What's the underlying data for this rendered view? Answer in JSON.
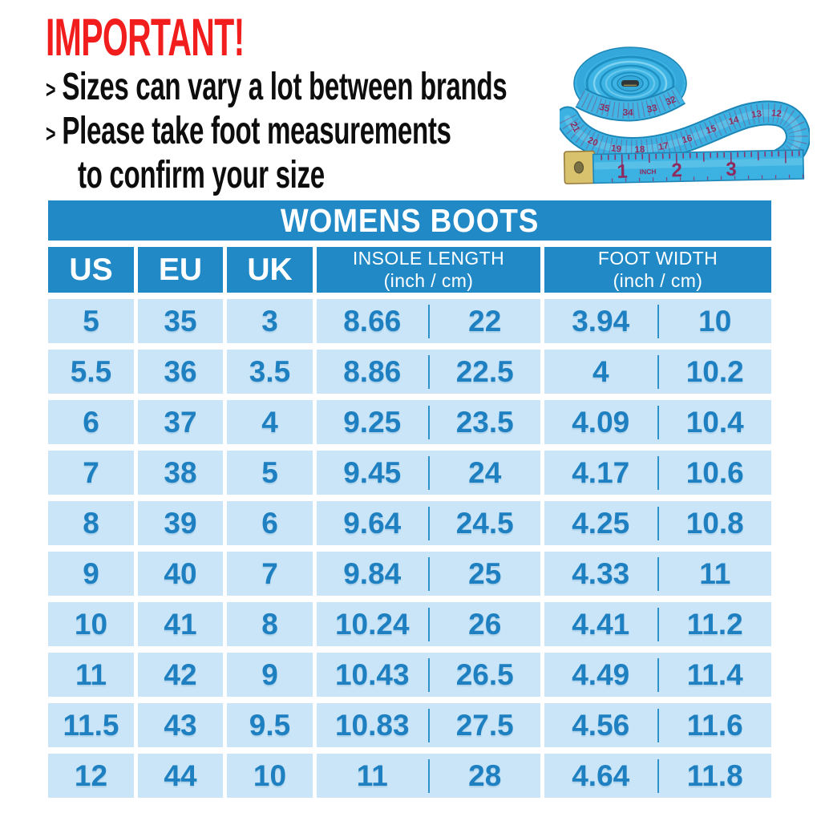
{
  "notice": {
    "title": "IMPORTANT!",
    "lines": [
      {
        "bullet": ">",
        "text": "Sizes can vary a lot between brands",
        "indent": false
      },
      {
        "bullet": ">",
        "text": "Please take foot measurements",
        "indent": false
      },
      {
        "bullet": "",
        "text": "to confirm your size",
        "indent": true
      }
    ]
  },
  "tape": {
    "inch_label": "INCH",
    "inch_numbers": [
      "1",
      "2",
      "3"
    ],
    "swoosh_numbers": [
      "21",
      "20",
      "19",
      "18",
      "17",
      "16",
      "15",
      "14",
      "13",
      "12"
    ],
    "coil_numbers": [
      "35",
      "34",
      "33",
      "32"
    ]
  },
  "table": {
    "title": "WOMENS BOOTS",
    "columns": [
      {
        "key": "us",
        "label": "US"
      },
      {
        "key": "eu",
        "label": "EU"
      },
      {
        "key": "uk",
        "label": "UK"
      },
      {
        "key": "insole",
        "label": "INSOLE LENGTH",
        "sub": "(inch / cm)"
      },
      {
        "key": "width",
        "label": "FOOT WIDTH",
        "sub": "(inch / cm)"
      }
    ],
    "rows": [
      {
        "us": "5",
        "eu": "35",
        "uk": "3",
        "insole_in": "8.66",
        "insole_cm": "22",
        "width_in": "3.94",
        "width_cm": "10"
      },
      {
        "us": "5.5",
        "eu": "36",
        "uk": "3.5",
        "insole_in": "8.86",
        "insole_cm": "22.5",
        "width_in": "4",
        "width_cm": "10.2"
      },
      {
        "us": "6",
        "eu": "37",
        "uk": "4",
        "insole_in": "9.25",
        "insole_cm": "23.5",
        "width_in": "4.09",
        "width_cm": "10.4"
      },
      {
        "us": "7",
        "eu": "38",
        "uk": "5",
        "insole_in": "9.45",
        "insole_cm": "24",
        "width_in": "4.17",
        "width_cm": "10.6"
      },
      {
        "us": "8",
        "eu": "39",
        "uk": "6",
        "insole_in": "9.64",
        "insole_cm": "24.5",
        "width_in": "4.25",
        "width_cm": "10.8"
      },
      {
        "us": "9",
        "eu": "40",
        "uk": "7",
        "insole_in": "9.84",
        "insole_cm": "25",
        "width_in": "4.33",
        "width_cm": "11"
      },
      {
        "us": "10",
        "eu": "41",
        "uk": "8",
        "insole_in": "10.24",
        "insole_cm": "26",
        "width_in": "4.41",
        "width_cm": "11.2"
      },
      {
        "us": "11",
        "eu": "42",
        "uk": "9",
        "insole_in": "10.43",
        "insole_cm": "26.5",
        "width_in": "4.49",
        "width_cm": "11.4"
      },
      {
        "us": "11.5",
        "eu": "43",
        "uk": "9.5",
        "insole_in": "10.83",
        "insole_cm": "27.5",
        "width_in": "4.56",
        "width_cm": "11.6"
      },
      {
        "us": "12",
        "eu": "44",
        "uk": "10",
        "insole_in": "11",
        "insole_cm": "28",
        "width_in": "4.64",
        "width_cm": "11.8"
      }
    ]
  },
  "colors": {
    "header_blue": "#2289c7",
    "row_blue": "#c9e5f7",
    "number_blue": "#1e80c1",
    "divider_blue": "#2d92cc",
    "important_red": "#f21d1d",
    "text_black": "#0d0d0d",
    "tape_blue": "#3cb2e3",
    "tape_edge": "#1d86b6",
    "tape_maroon": "#8e2a5e",
    "tape_gold": "#d8c26e"
  }
}
